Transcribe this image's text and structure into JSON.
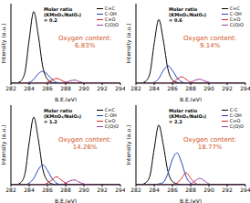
{
  "chart_data": [
    {
      "type": "line",
      "x_label": "B.E.(eV)",
      "y_label": "Intensity (a.u.)",
      "annotations": [
        "Molar ratio",
        "(KMnO₄/NaIO₄)",
        "= 0.2",
        "Oxygen content:",
        "6.83%"
      ],
      "legend": "upper right",
      "grid": false,
      "tick_labels": "x",
      "xlim": [
        282,
        294
      ],
      "xticks": [
        282,
        284,
        286,
        288,
        290,
        292,
        294
      ],
      "ylim": [
        0,
        100
      ],
      "x": [
        282,
        282.5,
        283,
        283.5,
        284,
        284.5,
        285,
        285.5,
        286,
        286.5,
        287,
        287.5,
        288,
        288.5,
        289,
        289.5,
        290,
        290.5,
        291,
        291.5,
        292,
        292.5,
        293,
        293.5,
        294
      ],
      "series": [
        {
          "name": "C=C",
          "color": "#000000",
          "values": [
            0,
            0,
            2,
            12,
            55,
            90,
            60,
            20,
            5,
            1,
            0,
            0,
            0,
            0,
            0,
            0,
            0,
            0,
            0,
            0,
            0,
            0,
            0,
            0,
            0
          ]
        },
        {
          "name": "C-OH",
          "color": "#1f3fbf",
          "values": [
            0,
            0,
            0,
            0,
            1,
            5,
            12,
            15,
            11,
            5,
            1,
            0,
            0,
            0,
            0,
            0,
            0,
            0,
            0,
            0,
            0,
            0,
            0,
            0,
            0
          ]
        },
        {
          "name": "C=O",
          "color": "#d62728",
          "values": [
            0,
            0,
            0,
            0,
            0,
            0,
            0,
            0,
            1,
            4,
            6,
            4,
            1,
            0,
            0,
            0,
            0,
            0,
            0,
            0,
            0,
            0,
            0,
            0,
            0
          ]
        },
        {
          "name": "C(O)O",
          "color": "#9b3fa0",
          "values": [
            0,
            0,
            0,
            0,
            0,
            0,
            0,
            0,
            0,
            0,
            0,
            0,
            1,
            3,
            4,
            2,
            0.5,
            0,
            0,
            0,
            0,
            0,
            0,
            0,
            0
          ]
        }
      ]
    },
    {
      "type": "line",
      "x_label": "B.E.(eV)",
      "y_label": "Intensity (a.u.)",
      "annotations": [
        "Molar ratio",
        "(KMnO₄/NaIO₄)",
        "= 0.6",
        "Oxygen content:",
        "9.14%"
      ],
      "legend": "upper right",
      "grid": false,
      "tick_labels": "x",
      "xlim": [
        282,
        294
      ],
      "xticks": [
        282,
        284,
        286,
        288,
        290,
        292,
        294
      ],
      "ylim": [
        0,
        100
      ],
      "x": [
        282,
        282.5,
        283,
        283.5,
        284,
        284.5,
        285,
        285.5,
        286,
        286.5,
        287,
        287.5,
        288,
        288.5,
        289,
        289.5,
        290,
        290.5,
        291,
        291.5,
        292,
        292.5,
        293,
        293.5,
        294
      ],
      "series": [
        {
          "name": "C=C",
          "color": "#000000",
          "values": [
            0,
            0,
            2,
            11,
            50,
            80,
            54,
            18,
            4,
            1,
            0,
            0,
            0,
            0,
            0,
            0,
            0,
            0,
            0,
            0,
            0,
            0,
            0,
            0,
            0
          ]
        },
        {
          "name": "C-OH",
          "color": "#1f3fbf",
          "values": [
            0,
            0,
            0,
            0,
            1,
            6,
            16,
            22,
            16,
            7,
            2,
            0,
            0,
            0,
            0,
            0,
            0,
            0,
            0,
            0,
            0,
            0,
            0,
            0,
            0
          ]
        },
        {
          "name": "C=O",
          "color": "#d62728",
          "values": [
            0,
            0,
            0,
            0,
            0,
            0,
            0,
            0,
            1,
            5,
            8,
            5,
            1,
            0,
            0,
            0,
            0,
            0,
            0,
            0,
            0,
            0,
            0,
            0,
            0
          ]
        },
        {
          "name": "C(O)O",
          "color": "#9b3fa0",
          "values": [
            0,
            0,
            0,
            0,
            0,
            0,
            0,
            0,
            0,
            0,
            0,
            0,
            1,
            4,
            5,
            3,
            1,
            0,
            0,
            0,
            0,
            0,
            0,
            0,
            0
          ]
        }
      ]
    },
    {
      "type": "line",
      "x_label": "B.E.(eV)",
      "y_label": "Intensity (a.u.)",
      "annotations": [
        "Molar ratio",
        "(KMnO₄/NaIO₄)",
        "= 1.2",
        "Oxygen content:",
        "14.26%"
      ],
      "legend": "upper right",
      "grid": false,
      "tick_labels": "x",
      "xlim": [
        282,
        294
      ],
      "xticks": [
        282,
        284,
        286,
        288,
        290,
        292,
        294
      ],
      "ylim": [
        0,
        100
      ],
      "x": [
        282,
        282.5,
        283,
        283.5,
        284,
        284.5,
        285,
        285.5,
        286,
        286.5,
        287,
        287.5,
        288,
        288.5,
        289,
        289.5,
        290,
        290.5,
        291,
        291.5,
        292,
        292.5,
        293,
        293.5,
        294
      ],
      "series": [
        {
          "name": "C=C",
          "color": "#000000",
          "values": [
            0,
            0,
            2,
            12,
            53,
            85,
            57,
            19,
            5,
            1,
            0,
            0,
            0,
            0,
            0,
            0,
            0,
            0,
            0,
            0,
            0,
            0,
            0,
            0,
            0
          ]
        },
        {
          "name": "C-OH",
          "color": "#1f3fbf",
          "values": [
            0,
            0,
            0,
            0,
            2,
            8,
            19,
            25,
            18,
            8,
            2,
            0,
            0,
            0,
            0,
            0,
            0,
            0,
            0,
            0,
            0,
            0,
            0,
            0,
            0
          ]
        },
        {
          "name": "C=O",
          "color": "#d62728",
          "values": [
            0,
            0,
            0,
            0,
            0,
            0,
            0,
            0,
            2,
            6,
            10,
            6,
            2,
            0,
            0,
            0,
            0,
            0,
            0,
            0,
            0,
            0,
            0,
            0,
            0
          ]
        },
        {
          "name": "C(O)O",
          "color": "#9b3fa0",
          "values": [
            0,
            0,
            0,
            0,
            0,
            0,
            0,
            0,
            0,
            0,
            0,
            0,
            2,
            5,
            6,
            3,
            1,
            0,
            0,
            0,
            0,
            0,
            0,
            0,
            0
          ]
        }
      ]
    },
    {
      "type": "line",
      "x_label": "B.E.(eV)",
      "y_label": "Intensity (a.u.)",
      "annotations": [
        "Molar ratio",
        "(KMnO₄/NaIO₄)",
        "= 2.2",
        "Oxygen content:",
        "18.77%"
      ],
      "legend": "upper right",
      "grid": false,
      "tick_labels": "x",
      "xlim": [
        282,
        294
      ],
      "xticks": [
        282,
        284,
        286,
        288,
        290,
        292,
        294
      ],
      "ylim": [
        0,
        100
      ],
      "x": [
        282,
        282.5,
        283,
        283.5,
        284,
        284.5,
        285,
        285.5,
        286,
        286.5,
        287,
        287.5,
        288,
        288.5,
        289,
        289.5,
        290,
        290.5,
        291,
        291.5,
        292,
        292.5,
        293,
        293.5,
        294
      ],
      "series": [
        {
          "name": "C-C",
          "color": "#000000",
          "values": [
            0,
            0,
            2,
            10,
            45,
            75,
            50,
            17,
            4,
            1,
            0,
            0,
            0,
            0,
            0,
            0,
            0,
            0,
            0,
            0,
            0,
            0,
            0,
            0,
            0
          ]
        },
        {
          "name": "C-OH",
          "color": "#1f3fbf",
          "values": [
            0,
            0,
            0,
            0,
            0,
            1,
            3,
            14,
            32,
            40,
            28,
            10,
            2,
            0,
            0,
            0,
            0,
            0,
            0,
            0,
            0,
            0,
            0,
            0,
            0
          ]
        },
        {
          "name": "C=O",
          "color": "#d62728",
          "values": [
            0,
            0,
            0,
            0,
            0,
            0,
            0,
            0,
            0,
            2,
            8,
            15,
            8,
            2,
            0,
            0,
            0,
            0,
            0,
            0,
            0,
            0,
            0,
            0,
            0
          ]
        },
        {
          "name": "C(O)O",
          "color": "#9b3fa0",
          "values": [
            0,
            0,
            0,
            0,
            0,
            0,
            0,
            0,
            0,
            0,
            0,
            0,
            1,
            5,
            8,
            5,
            1,
            0,
            0,
            0,
            0,
            0,
            0,
            0,
            0
          ]
        }
      ]
    }
  ]
}
